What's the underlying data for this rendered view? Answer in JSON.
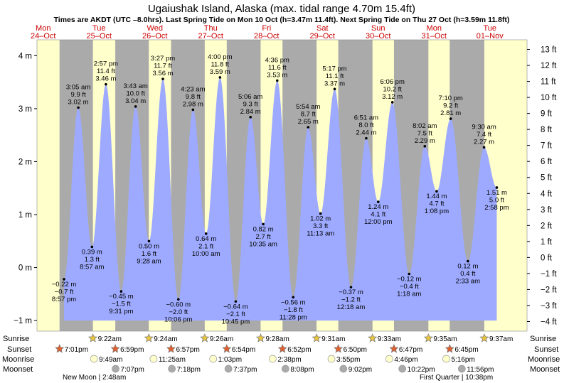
{
  "title": "Ugaiushak Island, Alaska (max. tidal range 4.70m 15.4ft)",
  "subtitle": "Times are AKDT (UTC –8.0hrs). Last Spring Tide on Mon 10 Oct (h=3.47m 11.4ft). Next Spring Tide on Thu 27 Oct (h=3.59m 11.8ft)",
  "colors": {
    "night": "#aaaaaa",
    "day": "#ffffcc",
    "water": "#9daaff",
    "text_red": "#cc0000",
    "sun": "#e8c440",
    "sunset": "#e06030",
    "moon_rise": "#ffffcc",
    "moon_set": "#aaaaaa"
  },
  "row_labels": {
    "sunrise": "Sunrise",
    "sunset": "Sunset",
    "moonrise": "Moonrise",
    "moonset": "Moonset"
  },
  "moon_notes": [
    "New Moon | 2:48am",
    "First Quarter | 10:38pm"
  ],
  "chart_data": {
    "type": "area",
    "days": [
      {
        "dow": "Mon",
        "date": "24–Oct"
      },
      {
        "dow": "Tue",
        "date": "25–Oct"
      },
      {
        "dow": "Wed",
        "date": "26–Oct"
      },
      {
        "dow": "Thu",
        "date": "27–Oct"
      },
      {
        "dow": "Fri",
        "date": "28–Oct"
      },
      {
        "dow": "Sat",
        "date": "29–Oct"
      },
      {
        "dow": "Sun",
        "date": "30–Oct"
      },
      {
        "dow": "Mon",
        "date": "31–Oct"
      },
      {
        "dow": "Tue",
        "date": "01–Nov"
      }
    ],
    "ylim_m": [
      -1.2,
      4.3
    ],
    "ylim_ft": [
      -4.6,
      13.6
    ],
    "yticks_m": [
      "−1 m",
      "0 m",
      "1 m",
      "2 m",
      "3 m",
      "4 m"
    ],
    "yticks_ft": [
      "−4 ft",
      "−3 ft",
      "−2 ft",
      "−1 ft",
      "0 ft",
      "1 ft",
      "2 ft",
      "3 ft",
      "4 ft",
      "5 ft",
      "6 ft",
      "7 ft",
      "8 ft",
      "9 ft",
      "10 ft",
      "11 ft",
      "12 ft",
      "13 ft"
    ],
    "tides": [
      {
        "day": 0,
        "t": "8:57 pm",
        "h": -0.22,
        "m": "−0.22 m",
        "ft": "−0.7 ft",
        "type": "low"
      },
      {
        "day": 1,
        "t": "3:05 am",
        "h": 3.02,
        "m": "3.02 m",
        "ft": "9.9 ft",
        "type": "high"
      },
      {
        "day": 1,
        "t": "8:57 am",
        "h": 0.39,
        "m": "0.39 m",
        "ft": "1.3 ft",
        "type": "low"
      },
      {
        "day": 1,
        "t": "2:57 pm",
        "h": 3.46,
        "m": "3.46 m",
        "ft": "11.4 ft",
        "type": "high"
      },
      {
        "day": 1,
        "t": "9:31 pm",
        "h": -0.45,
        "m": "−0.45 m",
        "ft": "−1.5 ft",
        "type": "low"
      },
      {
        "day": 2,
        "t": "3:43 am",
        "h": 3.04,
        "m": "3.04 m",
        "ft": "10.0 ft",
        "type": "high"
      },
      {
        "day": 2,
        "t": "9:28 am",
        "h": 0.5,
        "m": "0.50 m",
        "ft": "1.6 ft",
        "type": "low"
      },
      {
        "day": 2,
        "t": "3:27 pm",
        "h": 3.56,
        "m": "3.56 m",
        "ft": "11.7 ft",
        "type": "high"
      },
      {
        "day": 2,
        "t": "10:06 pm",
        "h": -0.6,
        "m": "−0.60 m",
        "ft": "−2.0 ft",
        "type": "low"
      },
      {
        "day": 3,
        "t": "4:23 am",
        "h": 2.98,
        "m": "2.98 m",
        "ft": "9.8 ft",
        "type": "high"
      },
      {
        "day": 3,
        "t": "10:00 am",
        "h": 0.64,
        "m": "0.64 m",
        "ft": "2.1 ft",
        "type": "low"
      },
      {
        "day": 3,
        "t": "4:00 pm",
        "h": 3.59,
        "m": "3.59 m",
        "ft": "11.8 ft",
        "type": "high"
      },
      {
        "day": 3,
        "t": "10:45 pm",
        "h": -0.64,
        "m": "−0.64 m",
        "ft": "−2.1 ft",
        "type": "low"
      },
      {
        "day": 4,
        "t": "5:06 am",
        "h": 2.84,
        "m": "2.84 m",
        "ft": "9.3 ft",
        "type": "high"
      },
      {
        "day": 4,
        "t": "10:35 am",
        "h": 0.82,
        "m": "0.82 m",
        "ft": "2.7 ft",
        "type": "low"
      },
      {
        "day": 4,
        "t": "4:36 pm",
        "h": 3.53,
        "m": "3.53 m",
        "ft": "11.6 ft",
        "type": "high"
      },
      {
        "day": 4,
        "t": "11:28 pm",
        "h": -0.56,
        "m": "−0.56 m",
        "ft": "−1.8 ft",
        "type": "low"
      },
      {
        "day": 5,
        "t": "5:54 am",
        "h": 2.65,
        "m": "2.65 m",
        "ft": "8.7 ft",
        "type": "high"
      },
      {
        "day": 5,
        "t": "11:13 am",
        "h": 1.02,
        "m": "1.02 m",
        "ft": "3.3 ft",
        "type": "low"
      },
      {
        "day": 5,
        "t": "5:17 pm",
        "h": 3.37,
        "m": "3.37 m",
        "ft": "11.1 ft",
        "type": "high"
      },
      {
        "day": 6,
        "t": "12:18 am",
        "h": -0.37,
        "m": "−0.37 m",
        "ft": "−1.2 ft",
        "type": "low"
      },
      {
        "day": 6,
        "t": "6:51 am",
        "h": 2.44,
        "m": "2.44 m",
        "ft": "8.0 ft",
        "type": "high"
      },
      {
        "day": 6,
        "t": "12:00 pm",
        "h": 1.24,
        "m": "1.24 m",
        "ft": "4.1 ft",
        "type": "low"
      },
      {
        "day": 6,
        "t": "6:06 pm",
        "h": 3.12,
        "m": "3.12 m",
        "ft": "10.2 ft",
        "type": "high"
      },
      {
        "day": 7,
        "t": "1:18 am",
        "h": -0.12,
        "m": "−0.12 m",
        "ft": "−0.4 ft",
        "type": "low"
      },
      {
        "day": 7,
        "t": "8:02 am",
        "h": 2.29,
        "m": "2.29 m",
        "ft": "7.5 ft",
        "type": "high"
      },
      {
        "day": 7,
        "t": "1:08 pm",
        "h": 1.44,
        "m": "1.44 m",
        "ft": "4.7 ft",
        "type": "low"
      },
      {
        "day": 7,
        "t": "7:10 pm",
        "h": 2.81,
        "m": "2.81 m",
        "ft": "9.2 ft",
        "type": "high"
      },
      {
        "day": 8,
        "t": "2:33 am",
        "h": 0.12,
        "m": "0.12 m",
        "ft": "0.4 ft",
        "type": "low"
      },
      {
        "day": 8,
        "t": "9:30 am",
        "h": 2.27,
        "m": "2.27 m",
        "ft": "7.4 ft",
        "type": "high"
      },
      {
        "day": 8,
        "t": "2:58 pm",
        "h": 1.51,
        "m": "1.51 m",
        "ft": "5.0 ft",
        "type": "low"
      }
    ],
    "sunrise": [
      {
        "day": 1,
        "t": "9:22am"
      },
      {
        "day": 2,
        "t": "9:24am"
      },
      {
        "day": 3,
        "t": "9:26am"
      },
      {
        "day": 4,
        "t": "9:28am"
      },
      {
        "day": 5,
        "t": "9:31am"
      },
      {
        "day": 6,
        "t": "9:33am"
      },
      {
        "day": 7,
        "t": "9:35am"
      },
      {
        "day": 8,
        "t": "9:37am"
      }
    ],
    "sunset": [
      {
        "day": 0,
        "t": "7:01pm"
      },
      {
        "day": 1,
        "t": "6:59pm"
      },
      {
        "day": 2,
        "t": "6:57pm"
      },
      {
        "day": 3,
        "t": "6:54pm"
      },
      {
        "day": 4,
        "t": "6:52pm"
      },
      {
        "day": 5,
        "t": "6:50pm"
      },
      {
        "day": 6,
        "t": "6:47pm"
      },
      {
        "day": 7,
        "t": "6:45pm"
      }
    ],
    "moonrise": [
      {
        "day": 1,
        "t": "9:49am"
      },
      {
        "day": 2,
        "t": "11:25am"
      },
      {
        "day": 3,
        "t": "1:03pm"
      },
      {
        "day": 4,
        "t": "2:38pm"
      },
      {
        "day": 5,
        "t": "3:55pm"
      },
      {
        "day": 6,
        "t": "4:46pm"
      },
      {
        "day": 7,
        "t": "5:16pm"
      }
    ],
    "moonset": [
      {
        "day": 1,
        "t": "7:07pm"
      },
      {
        "day": 2,
        "t": "7:18pm"
      },
      {
        "day": 3,
        "t": "7:37pm"
      },
      {
        "day": 4,
        "t": "8:08pm"
      },
      {
        "day": 5,
        "t": "9:02pm"
      },
      {
        "day": 6,
        "t": "10:22pm"
      },
      {
        "day": 7,
        "t": "11:56pm"
      }
    ]
  }
}
